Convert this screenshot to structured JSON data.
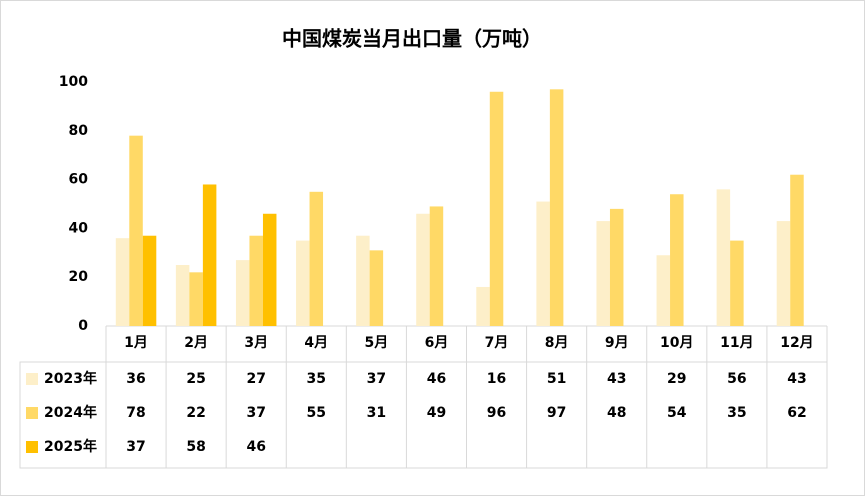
{
  "chart_data": {
    "type": "bar",
    "title": "中国煤炭当月出口量（万吨）",
    "categories": [
      "1月",
      "2月",
      "3月",
      "4月",
      "5月",
      "6月",
      "7月",
      "8月",
      "9月",
      "10月",
      "11月",
      "12月"
    ],
    "series": [
      {
        "name": "2023年",
        "color": "#fdefc9",
        "values": [
          36,
          25,
          27,
          35,
          37,
          46,
          16,
          51,
          43,
          29,
          56,
          43
        ]
      },
      {
        "name": "2024年",
        "color": "#ffd966",
        "values": [
          78,
          22,
          37,
          55,
          31,
          49,
          96,
          97,
          48,
          54,
          35,
          62
        ]
      },
      {
        "name": "2025年",
        "color": "#ffc000",
        "values": [
          37,
          58,
          46,
          null,
          null,
          null,
          null,
          null,
          null,
          null,
          null,
          null
        ]
      }
    ],
    "ylim": [
      0,
      100
    ],
    "yticks": [
      0,
      20,
      40,
      60,
      80,
      100
    ],
    "grid": false
  }
}
